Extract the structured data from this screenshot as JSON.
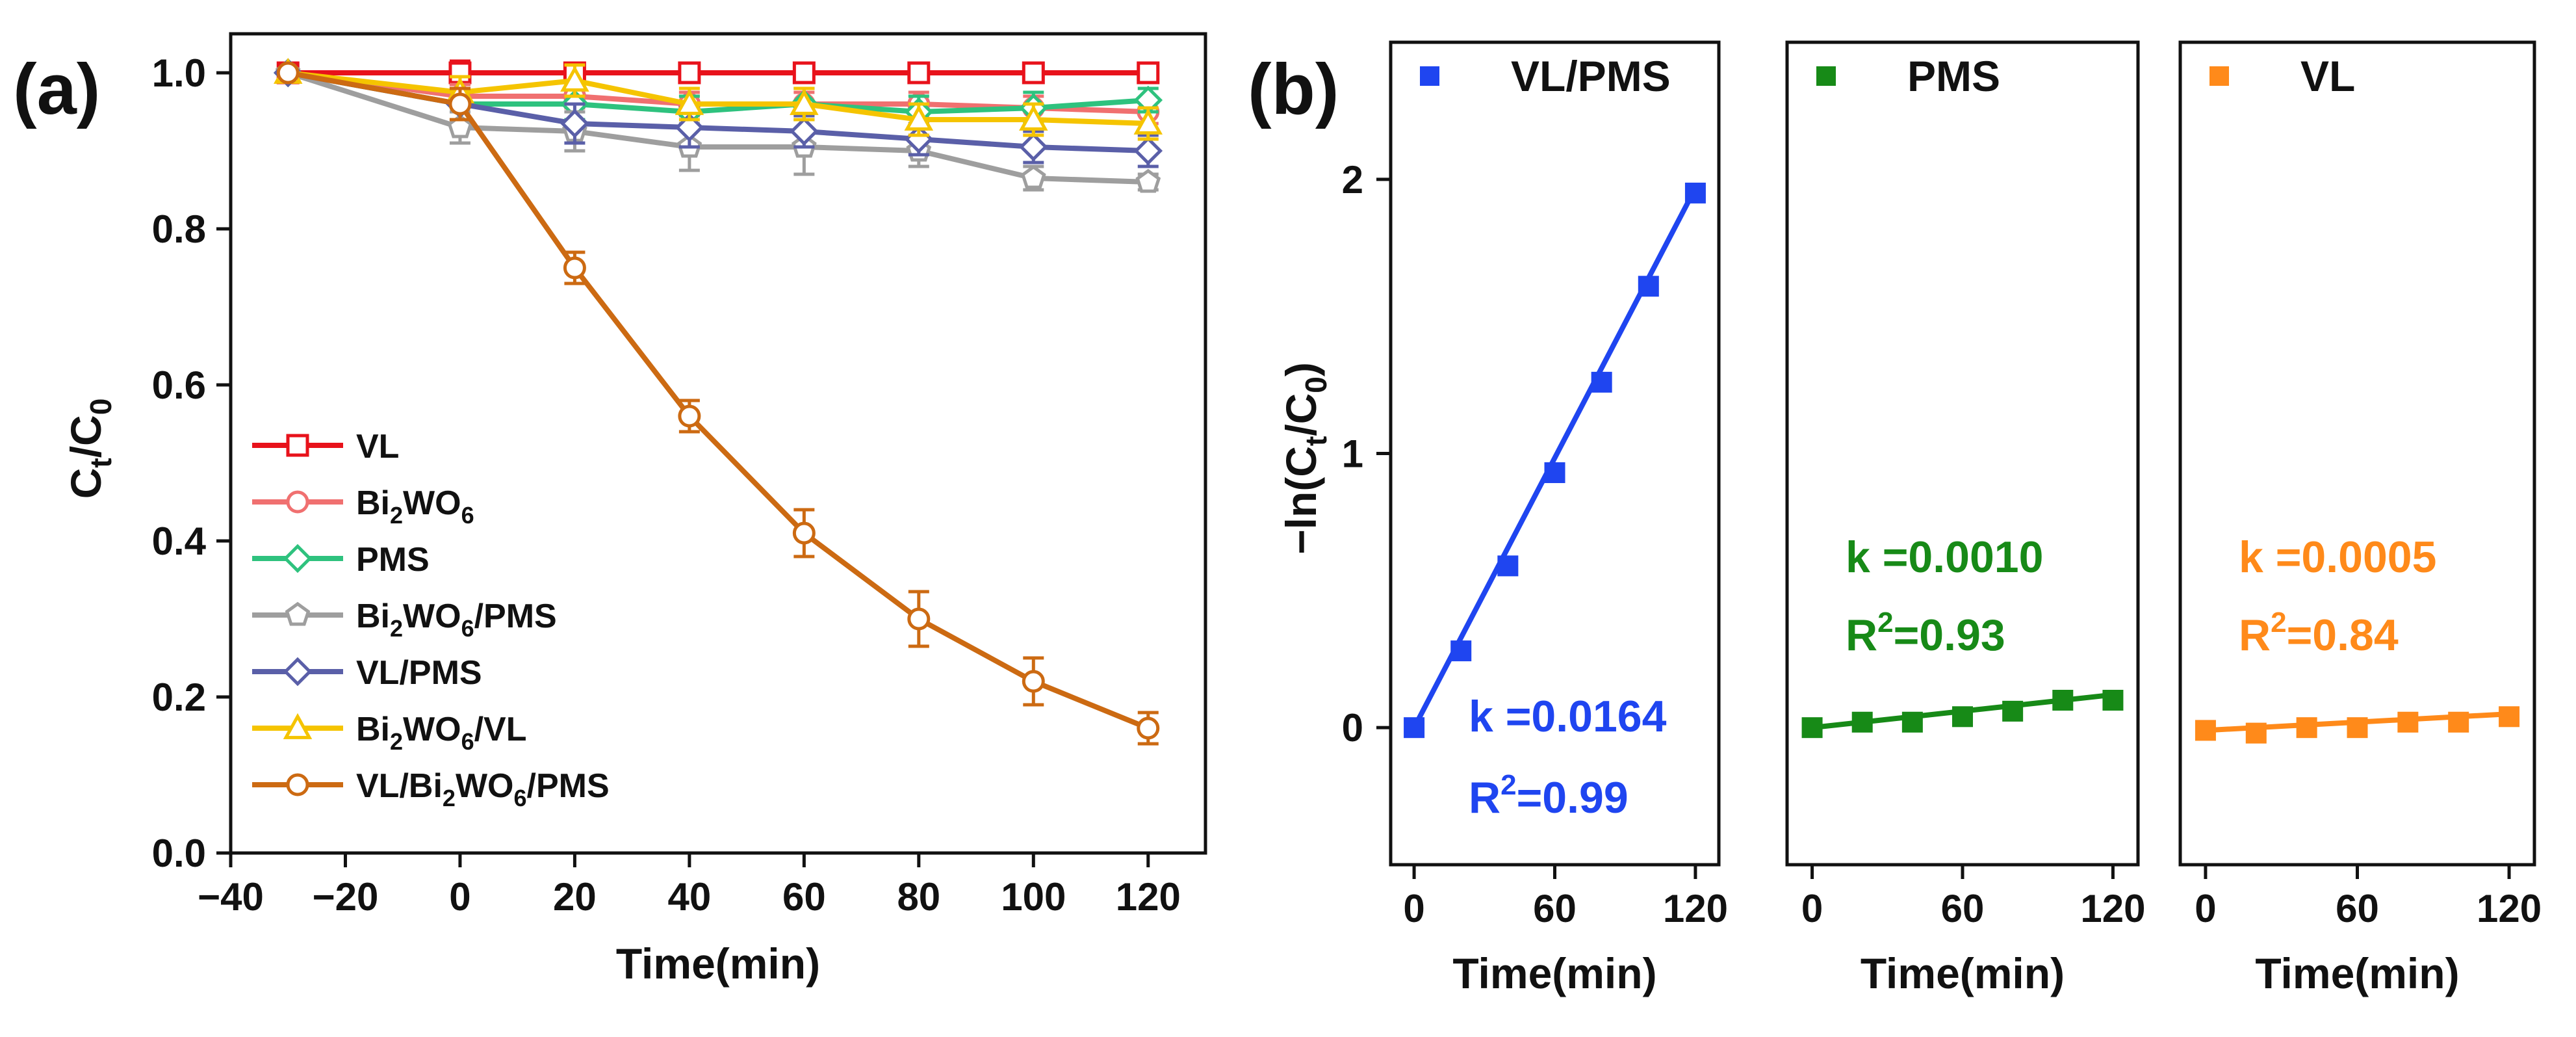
{
  "chart_data": [
    {
      "panel_label": "(a)",
      "type": "line",
      "xlabel": "Time(min)",
      "ylabel": {
        "main": "C",
        "sub1": "t",
        "mid": "/C",
        "sub2": "0"
      },
      "xlim": [
        -40,
        130
      ],
      "ylim": [
        0.0,
        1.05
      ],
      "xticks": [
        -40,
        -20,
        0,
        20,
        40,
        60,
        80,
        100,
        120
      ],
      "xtick_labels": [
        "−40",
        "−20",
        "0",
        "20",
        "40",
        "60",
        "80",
        "100",
        "120"
      ],
      "yticks": [
        0.0,
        0.2,
        0.4,
        0.6,
        0.8,
        1.0
      ],
      "ytick_labels": [
        "0.0",
        "0.2",
        "0.4",
        "0.6",
        "0.8",
        "1.0"
      ],
      "x": [
        -30,
        0,
        20,
        40,
        60,
        80,
        100,
        120
      ],
      "legend_position": "left-middle",
      "series": [
        {
          "name": "VL",
          "label_parts": [
            {
              "t": "VL"
            }
          ],
          "color": "#e8121b",
          "marker": "square",
          "values": [
            1.0,
            1.0,
            1.0,
            1.0,
            1.0,
            1.0,
            1.0,
            1.0
          ],
          "errors": [
            0,
            0.015,
            0.012,
            0.012,
            0.012,
            0.012,
            0.012,
            0.01
          ]
        },
        {
          "name": "Bi2WO6",
          "label_parts": [
            {
              "t": "Bi"
            },
            {
              "t": "2",
              "sub": true
            },
            {
              "t": "WO"
            },
            {
              "t": "6",
              "sub": true
            }
          ],
          "color": "#f07070",
          "marker": "circle",
          "values": [
            1.0,
            0.97,
            0.97,
            0.96,
            0.96,
            0.96,
            0.955,
            0.95
          ],
          "errors": [
            0,
            0.015,
            0.015,
            0.015,
            0.015,
            0.015,
            0.015,
            0.015
          ]
        },
        {
          "name": "PMS",
          "label_parts": [
            {
              "t": "PMS"
            }
          ],
          "color": "#2ec27e",
          "marker": "diamond",
          "values": [
            1.0,
            0.96,
            0.96,
            0.95,
            0.96,
            0.95,
            0.955,
            0.965
          ],
          "errors": [
            0,
            0.02,
            0.02,
            0.02,
            0.02,
            0.02,
            0.02,
            0.015
          ]
        },
        {
          "name": "Bi2WO6/PMS",
          "label_parts": [
            {
              "t": "Bi"
            },
            {
              "t": "2",
              "sub": true
            },
            {
              "t": "WO"
            },
            {
              "t": "6",
              "sub": true
            },
            {
              "t": "/PMS"
            }
          ],
          "color": "#9e9e9e",
          "marker": "pentagon",
          "values": [
            1.0,
            0.93,
            0.925,
            0.905,
            0.905,
            0.9,
            0.865,
            0.86
          ],
          "errors": [
            0,
            0.02,
            0.025,
            0.03,
            0.035,
            0.02,
            0.015,
            0.01
          ]
        },
        {
          "name": "VL/PMS",
          "label_parts": [
            {
              "t": "VL/PMS"
            }
          ],
          "color": "#5a5fa8",
          "marker": "diamond",
          "values": [
            1.0,
            0.96,
            0.935,
            0.93,
            0.925,
            0.915,
            0.905,
            0.9
          ],
          "errors": [
            0,
            0.02,
            0.025,
            0.025,
            0.02,
            0.02,
            0.02,
            0.02
          ]
        },
        {
          "name": "Bi2WO6/VL",
          "label_parts": [
            {
              "t": "Bi"
            },
            {
              "t": "2",
              "sub": true
            },
            {
              "t": "WO"
            },
            {
              "t": "6",
              "sub": true
            },
            {
              "t": "/VL"
            }
          ],
          "color": "#f5c400",
          "marker": "triangle",
          "values": [
            1.0,
            0.975,
            0.99,
            0.96,
            0.96,
            0.94,
            0.94,
            0.935
          ],
          "errors": [
            0,
            0.02,
            0.02,
            0.02,
            0.02,
            0.02,
            0.02,
            0.02
          ]
        },
        {
          "name": "VL/Bi2WO6/PMS",
          "label_parts": [
            {
              "t": "VL/Bi"
            },
            {
              "t": "2",
              "sub": true
            },
            {
              "t": "WO"
            },
            {
              "t": "6",
              "sub": true
            },
            {
              "t": "/PMS"
            }
          ],
          "color": "#cc6a12",
          "marker": "circle",
          "values": [
            1.0,
            0.96,
            0.75,
            0.56,
            0.41,
            0.3,
            0.22,
            0.16
          ],
          "errors": [
            0,
            0.02,
            0.02,
            0.02,
            0.03,
            0.035,
            0.03,
            0.02
          ]
        }
      ]
    },
    {
      "panel_label": "(b)",
      "type": "scatter",
      "xlabel": "Time(min)",
      "ylabel": {
        "pre": "−ln(C",
        "sub1": "t",
        "mid": "/C",
        "sub2": "0",
        "post": ")"
      },
      "xlim": [
        -10,
        130
      ],
      "ylim": [
        -0.5,
        2.5
      ],
      "xticks": [
        0,
        60,
        120
      ],
      "xtick_labels": [
        "0",
        "60",
        "120"
      ],
      "yticks": [
        0,
        1,
        2
      ],
      "ytick_labels": [
        "0",
        "1",
        "2"
      ],
      "x": [
        0,
        20,
        40,
        60,
        80,
        100,
        120
      ],
      "panels": [
        {
          "name": "VL/PMS",
          "color": "#1f45f0",
          "values": [
            0.0,
            0.28,
            0.59,
            0.93,
            1.26,
            1.61,
            1.95
          ],
          "fit_slope": 0.0164,
          "k_text": "k =0.0164",
          "r2_value": "=0.99"
        },
        {
          "name": "PMS",
          "color": "#178a17",
          "values": [
            0.0,
            0.02,
            0.02,
            0.04,
            0.06,
            0.1,
            0.1
          ],
          "fit_slope": 0.001,
          "k_text": "k =0.0010",
          "r2_value": "=0.93"
        },
        {
          "name": "VL",
          "color": "#ff8a1a",
          "values": [
            -0.01,
            -0.02,
            0.0,
            0.0,
            0.02,
            0.02,
            0.04
          ],
          "fit_slope": 0.0005,
          "k_text": "k =0.0005",
          "r2_value": "=0.84"
        }
      ],
      "r2_label": {
        "main": "R",
        "sup": "2"
      }
    }
  ]
}
